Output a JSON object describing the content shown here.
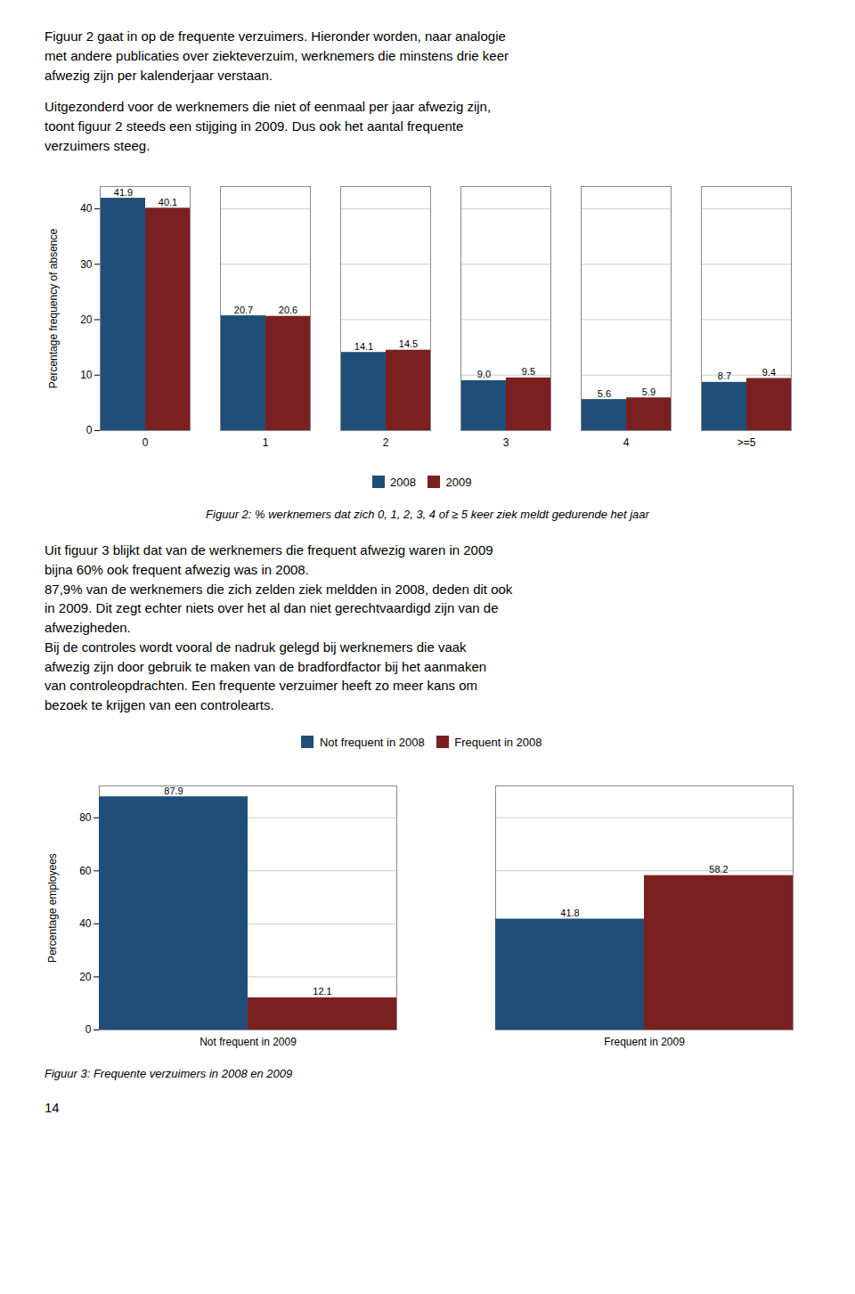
{
  "paragraphs": [
    "Figuur 2 gaat in op de frequente verzuimers. Hieronder worden, naar analogie\nmet andere publicaties over ziekteverzuim, werknemers die minstens drie keer\nafwezig zijn per kalenderjaar verstaan.",
    "Uitgezonderd voor de werknemers die niet of eenmaal per jaar afwezig zijn,\ntoont figuur 2 steeds een stijging in 2009. Dus ook het aantal frequente\nverzuimers steeg.",
    "Uit figuur 3 blijkt dat van de werknemers die frequent afwezig waren in 2009\nbijna 60% ook frequent afwezig was in 2008.\n87,9% van de werknemers die zich zelden ziek meldden in 2008, deden dit ook\nin 2009. Dit zegt echter niets over het al dan niet gerechtvaardigd zijn van de\nafwezigheden.\nBij de controles wordt vooral de nadruk gelegd bij werknemers die vaak\nafwezig zijn door gebruik te maken van de bradfordfactor bij het aanmaken\nvan controleopdrachten. Een frequente verzuimer heeft zo meer kans om\nbezoek te krijgen van een controlearts."
  ],
  "page_number": "14",
  "chart_data": [
    {
      "type": "bar",
      "caption": "Figuur 2: % werknemers dat zich 0, 1, 2, 3, 4 of ≥ 5 keer ziek meldt gedurende het jaar",
      "ylabel": "Percentage frequency of absence",
      "categories": [
        "0",
        "1",
        "2",
        "3",
        "4",
        ">=5"
      ],
      "series": [
        {
          "name": "2008",
          "color": "#1F4E79",
          "values": [
            41.9,
            20.7,
            14.1,
            9.0,
            5.6,
            8.7
          ],
          "value_labels": [
            "41.9",
            "20.7",
            "14.1",
            "9.0",
            "5.6",
            "8.7"
          ]
        },
        {
          "name": "2009",
          "color": "#7B2020",
          "values": [
            40.1,
            20.6,
            14.5,
            9.5,
            5.9,
            9.4
          ],
          "value_labels": [
            "40.1",
            "20.6",
            "14.5",
            "9.5",
            "5.9",
            "9.4"
          ]
        }
      ],
      "ylim": [
        0,
        44
      ],
      "yticks": [
        0,
        10,
        20,
        30,
        40
      ],
      "grid": true,
      "legend": "bottom",
      "data_labels": true
    },
    {
      "type": "bar",
      "caption": "Figuur 3: Frequente verzuimers in 2008 en 2009",
      "ylabel": "Percentage employees",
      "categories": [
        "Not frequent in 2009",
        "Frequent in 2009"
      ],
      "series": [
        {
          "name": "Not frequent in 2008",
          "color": "#1F4E79",
          "values": [
            87.9,
            41.8
          ],
          "value_labels": [
            "87.9",
            "41.8"
          ]
        },
        {
          "name": "Frequent in 2008",
          "color": "#7B2020",
          "values": [
            12.1,
            58.2
          ],
          "value_labels": [
            "12.1",
            "58.2"
          ]
        }
      ],
      "ylim": [
        0,
        92
      ],
      "yticks": [
        0,
        20,
        40,
        60,
        80
      ],
      "grid": true,
      "legend": "top",
      "data_labels": true
    }
  ]
}
